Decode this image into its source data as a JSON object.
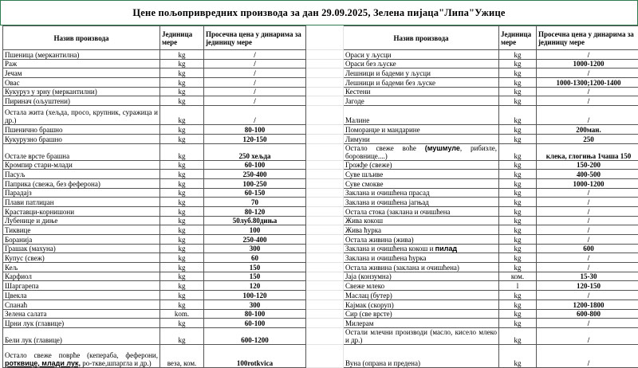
{
  "title": "Цене пољопривредних производа за дан 29.09.2025, Зелена пијаца\"Липа\"Ужице",
  "headers": {
    "name": "Назив производа",
    "unit": "Јединица мере",
    "price": "Просечна цена у динарима за јединицу мере"
  },
  "colors": {
    "selection_border": "#2e7d4f",
    "grid": "#555555"
  },
  "rows": [
    {
      "left": {
        "name": [
          {
            "t": "Пшеница (меркантилна)"
          }
        ],
        "unit": "kg",
        "price": "/"
      },
      "right": {
        "name": [
          {
            "t": "Ораси у љусци"
          }
        ],
        "unit": "kg",
        "price": "/"
      }
    },
    {
      "left": {
        "name": [
          {
            "t": "Раж"
          }
        ],
        "unit": "kg",
        "price": "/"
      },
      "right": {
        "name": [
          {
            "t": "Ораси без љуске"
          }
        ],
        "unit": "kg",
        "price": "1000-1200"
      }
    },
    {
      "left": {
        "name": [
          {
            "t": "Јечам"
          }
        ],
        "unit": "kg",
        "price": "/"
      },
      "right": {
        "name": [
          {
            "t": "Лешници и бадеми у љусци"
          }
        ],
        "unit": "kg",
        "price": "/"
      }
    },
    {
      "left": {
        "name": [
          {
            "t": "Овас"
          }
        ],
        "unit": "kg",
        "price": "/"
      },
      "right": {
        "name": [
          {
            "t": "Лешници и бадеми без љуске"
          }
        ],
        "unit": "kg",
        "price": "1000-1300;1200-1400"
      }
    },
    {
      "left": {
        "name": [
          {
            "t": "Кукуруз у зрну (меркантилни)"
          }
        ],
        "unit": "kg",
        "price": "/"
      },
      "right": {
        "name": [
          {
            "t": "Кестени"
          }
        ],
        "unit": "kg",
        "price": "/"
      }
    },
    {
      "left": {
        "name": [
          {
            "t": "Пиринач (ољуштени)"
          }
        ],
        "unit": "kg",
        "price": "/"
      },
      "right": {
        "name": [
          {
            "t": "Јагоде"
          }
        ],
        "unit": "kg",
        "price": "/"
      }
    },
    {
      "tall": 24,
      "left": {
        "name": [
          {
            "t": "Остала жита (хељда, просо, крупник, суражица и др.)"
          }
        ],
        "unit": "kg",
        "price": "/"
      },
      "right": {
        "name": [
          {
            "t": "Малине"
          }
        ],
        "unit": "kg",
        "price": "/"
      }
    },
    {
      "left": {
        "name": [
          {
            "t": "Пшенично брашно"
          }
        ],
        "unit": "kg",
        "price": "80-100"
      },
      "right": {
        "name": [
          {
            "t": "Поморанџе и мандарине"
          }
        ],
        "unit": "kg",
        "price": "200ман."
      }
    },
    {
      "left": {
        "name": [
          {
            "t": "Кукурузно брашно"
          }
        ],
        "unit": "kg",
        "price": "120-150"
      },
      "right": {
        "name": [
          {
            "t": "Лимуни"
          }
        ],
        "unit": "kg",
        "price": "250"
      }
    },
    {
      "tall": 16,
      "left": {
        "name": [
          {
            "t": "Остале врсте брашна"
          }
        ],
        "unit": "kg",
        "price": "250 хељда"
      },
      "right": {
        "name": [
          {
            "t": "Остало свеже воће "
          },
          {
            "t": "(мушмуле",
            "sb": true
          },
          {
            "t": ", рибизле, боровнице....)"
          }
        ],
        "unit": "kg",
        "price": "клека, глогиња 1чаша 150"
      }
    },
    {
      "left": {
        "name": [
          {
            "t": "Кромпир стари-млади"
          }
        ],
        "unit": "kg",
        "price": "60-100"
      },
      "right": {
        "name": [
          {
            "t": "Грожђе (свеже)"
          }
        ],
        "unit": "kg",
        "price": "150-200"
      }
    },
    {
      "left": {
        "name": [
          {
            "t": "Пасуљ"
          }
        ],
        "unit": "kg",
        "price": "250-400"
      },
      "right": {
        "name": [
          {
            "t": "Суве шљиве"
          }
        ],
        "unit": "kg",
        "price": "400-500"
      }
    },
    {
      "left": {
        "name": [
          {
            "t": "Паприка (свежа, без феферона)"
          }
        ],
        "unit": "kg",
        "price": "100-250"
      },
      "right": {
        "name": [
          {
            "t": "Суве смокве"
          }
        ],
        "unit": "kg",
        "price": "1000-1200"
      }
    },
    {
      "left": {
        "name": [
          {
            "t": "Парадајз"
          }
        ],
        "unit": "kg",
        "price": "60-150"
      },
      "right": {
        "name": [
          {
            "t": "Заклана и очишћена прасад"
          }
        ],
        "unit": "kg",
        "price": "/"
      }
    },
    {
      "left": {
        "name": [
          {
            "t": "Плави патлиџан"
          }
        ],
        "unit": "kg",
        "price": "70"
      },
      "right": {
        "name": [
          {
            "t": "Заклана и очишћена јагњад"
          }
        ],
        "unit": "kg",
        "price": "/"
      }
    },
    {
      "left": {
        "name": [
          {
            "t": "Краставци-корнишони"
          }
        ],
        "unit": "kg",
        "price": "80-120"
      },
      "right": {
        "name": [
          {
            "t": "Остала стока (заклана и очишћена"
          }
        ],
        "unit": "kg",
        "price": "/"
      }
    },
    {
      "left": {
        "name": [
          {
            "t": "Лубенице и диње"
          }
        ],
        "unit": "kg",
        "price": "50луб.80диња"
      },
      "right": {
        "name": [
          {
            "t": "Жива кокош"
          }
        ],
        "unit": "kg",
        "price": "/"
      }
    },
    {
      "left": {
        "name": [
          {
            "t": "Тиквице"
          }
        ],
        "unit": "kg",
        "price": "100"
      },
      "right": {
        "name": [
          {
            "t": "Жива ћурка"
          }
        ],
        "unit": "kg",
        "price": "/"
      }
    },
    {
      "left": {
        "name": [
          {
            "t": "Боранија"
          }
        ],
        "unit": "kg",
        "price": "250-400"
      },
      "right": {
        "name": [
          {
            "t": "Остала живина (жива)"
          }
        ],
        "unit": "kg",
        "price": "/"
      }
    },
    {
      "left": {
        "name": [
          {
            "t": "Грашак (махуна)"
          }
        ],
        "unit": "kg",
        "price": "300"
      },
      "right": {
        "name": [
          {
            "t": "Заклана и очишћена кокош и "
          },
          {
            "t": "пилад",
            "sb": true
          }
        ],
        "unit": "kg",
        "price": "600"
      }
    },
    {
      "left": {
        "name": [
          {
            "t": "Купус (свеж)"
          }
        ],
        "unit": "kg",
        "price": "60"
      },
      "right": {
        "name": [
          {
            "t": "Заклана и очишћена ћурка"
          }
        ],
        "unit": "kg",
        "price": "/"
      }
    },
    {
      "left": {
        "name": [
          {
            "t": "Кељ"
          }
        ],
        "unit": "kg",
        "price": "150"
      },
      "right": {
        "name": [
          {
            "t": "Остала живина (заклана  и очишћена)"
          }
        ],
        "unit": "kg",
        "price": "/"
      }
    },
    {
      "left": {
        "name": [
          {
            "t": "Карфиол"
          }
        ],
        "unit": "kg",
        "price": "150"
      },
      "right": {
        "name": [
          {
            "t": "Јаја (конзумна)"
          }
        ],
        "unit": "ком.",
        "price": "15-30"
      }
    },
    {
      "left": {
        "name": [
          {
            "t": "Шаргарепа"
          }
        ],
        "unit": "kg",
        "price": "120"
      },
      "right": {
        "name": [
          {
            "t": "Свеже млеко"
          }
        ],
        "unit": "l",
        "price": "120-150"
      }
    },
    {
      "left": {
        "name": [
          {
            "t": "Цвекла"
          }
        ],
        "unit": "kg",
        "price": "100-120"
      },
      "right": {
        "name": [
          {
            "t": "Маслац (бутер)"
          }
        ],
        "unit": "kg",
        "price": "/"
      }
    },
    {
      "left": {
        "name": [
          {
            "t": "Спанаћ"
          }
        ],
        "unit": "kg",
        "price": "300"
      },
      "right": {
        "name": [
          {
            "t": "Кајмак (скоруп)"
          }
        ],
        "unit": "kg",
        "price": "1200-1800"
      }
    },
    {
      "left": {
        "name": [
          {
            "t": "Зелена салата"
          }
        ],
        "unit": "kom.",
        "price": "80-100"
      },
      "right": {
        "name": [
          {
            "t": "Сир (све врсте)"
          }
        ],
        "unit": "kg",
        "price": "600-800"
      }
    },
    {
      "left": {
        "name": [
          {
            "t": "Црни лук (главице)"
          }
        ],
        "unit": "kg",
        "price": "60-100"
      },
      "right": {
        "name": [
          {
            "t": "Милерам"
          }
        ],
        "unit": "kg",
        "price": "/"
      }
    },
    {
      "tall": 18,
      "left": {
        "name": [
          {
            "t": "Бели лук (главице)"
          }
        ],
        "unit": "kg",
        "price": "600-1200"
      },
      "right": {
        "name": [
          {
            "t": "Остали млечни производи (масло,  кисело млеко и др.)"
          }
        ],
        "unit": "kg",
        "price": "/"
      }
    },
    {
      "tall": 29,
      "left": {
        "name": [
          {
            "t": "Остало свеже поврће (кепераба, феферони, "
          },
          {
            "t": "ротквице, млади лук,",
            "sb": true,
            "u": true
          },
          {
            "t": " ро-тквe,шпаргла и др.)"
          }
        ],
        "unit": "веза, ком.",
        "price": "100rotkvica"
      },
      "right": {
        "name": [
          {
            "t": "Вуна (опрана и предена)"
          }
        ],
        "unit": "kg",
        "price": "/"
      }
    }
  ]
}
